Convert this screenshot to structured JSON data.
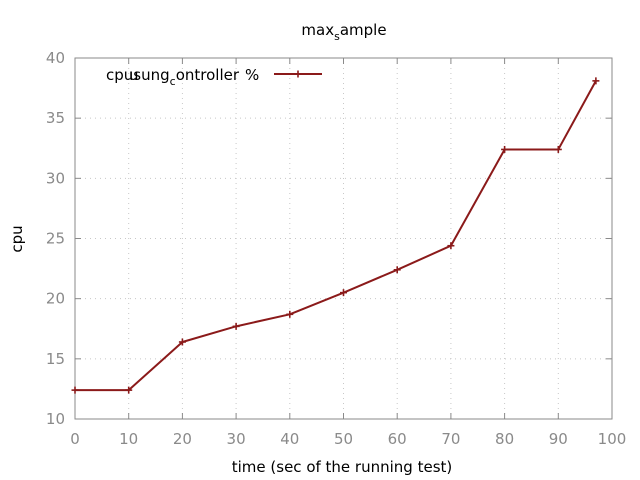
{
  "chart_data": {
    "type": "line",
    "title": {
      "base": "max",
      "sub": "s",
      "rest": "ample"
    },
    "xlabel": "time (sec of the running test)",
    "ylabel": "cpu",
    "xlim": [
      0,
      100
    ],
    "ylim": [
      10,
      40
    ],
    "xticks": [
      0,
      10,
      20,
      30,
      40,
      50,
      60,
      70,
      80,
      90,
      100
    ],
    "yticks": [
      10,
      15,
      20,
      25,
      30,
      35,
      40
    ],
    "grid": true,
    "legend_position": "top-left",
    "series": [
      {
        "name": "cpu_using_controller_%",
        "legend_display": {
          "part1": "cpu",
          "part2": "sung",
          "part3": "ontroller",
          "sub_mark": "c",
          "overstrike_1": "u",
          "overstrike_2": "%"
        },
        "color": "#8b1a1a",
        "marker": "plus",
        "x": [
          0,
          10,
          20,
          30,
          40,
          50,
          60,
          70,
          80,
          90,
          97
        ],
        "y": [
          12.4,
          12.4,
          16.4,
          17.7,
          18.7,
          20.5,
          22.4,
          24.4,
          32.4,
          32.4,
          38.1
        ]
      }
    ]
  }
}
